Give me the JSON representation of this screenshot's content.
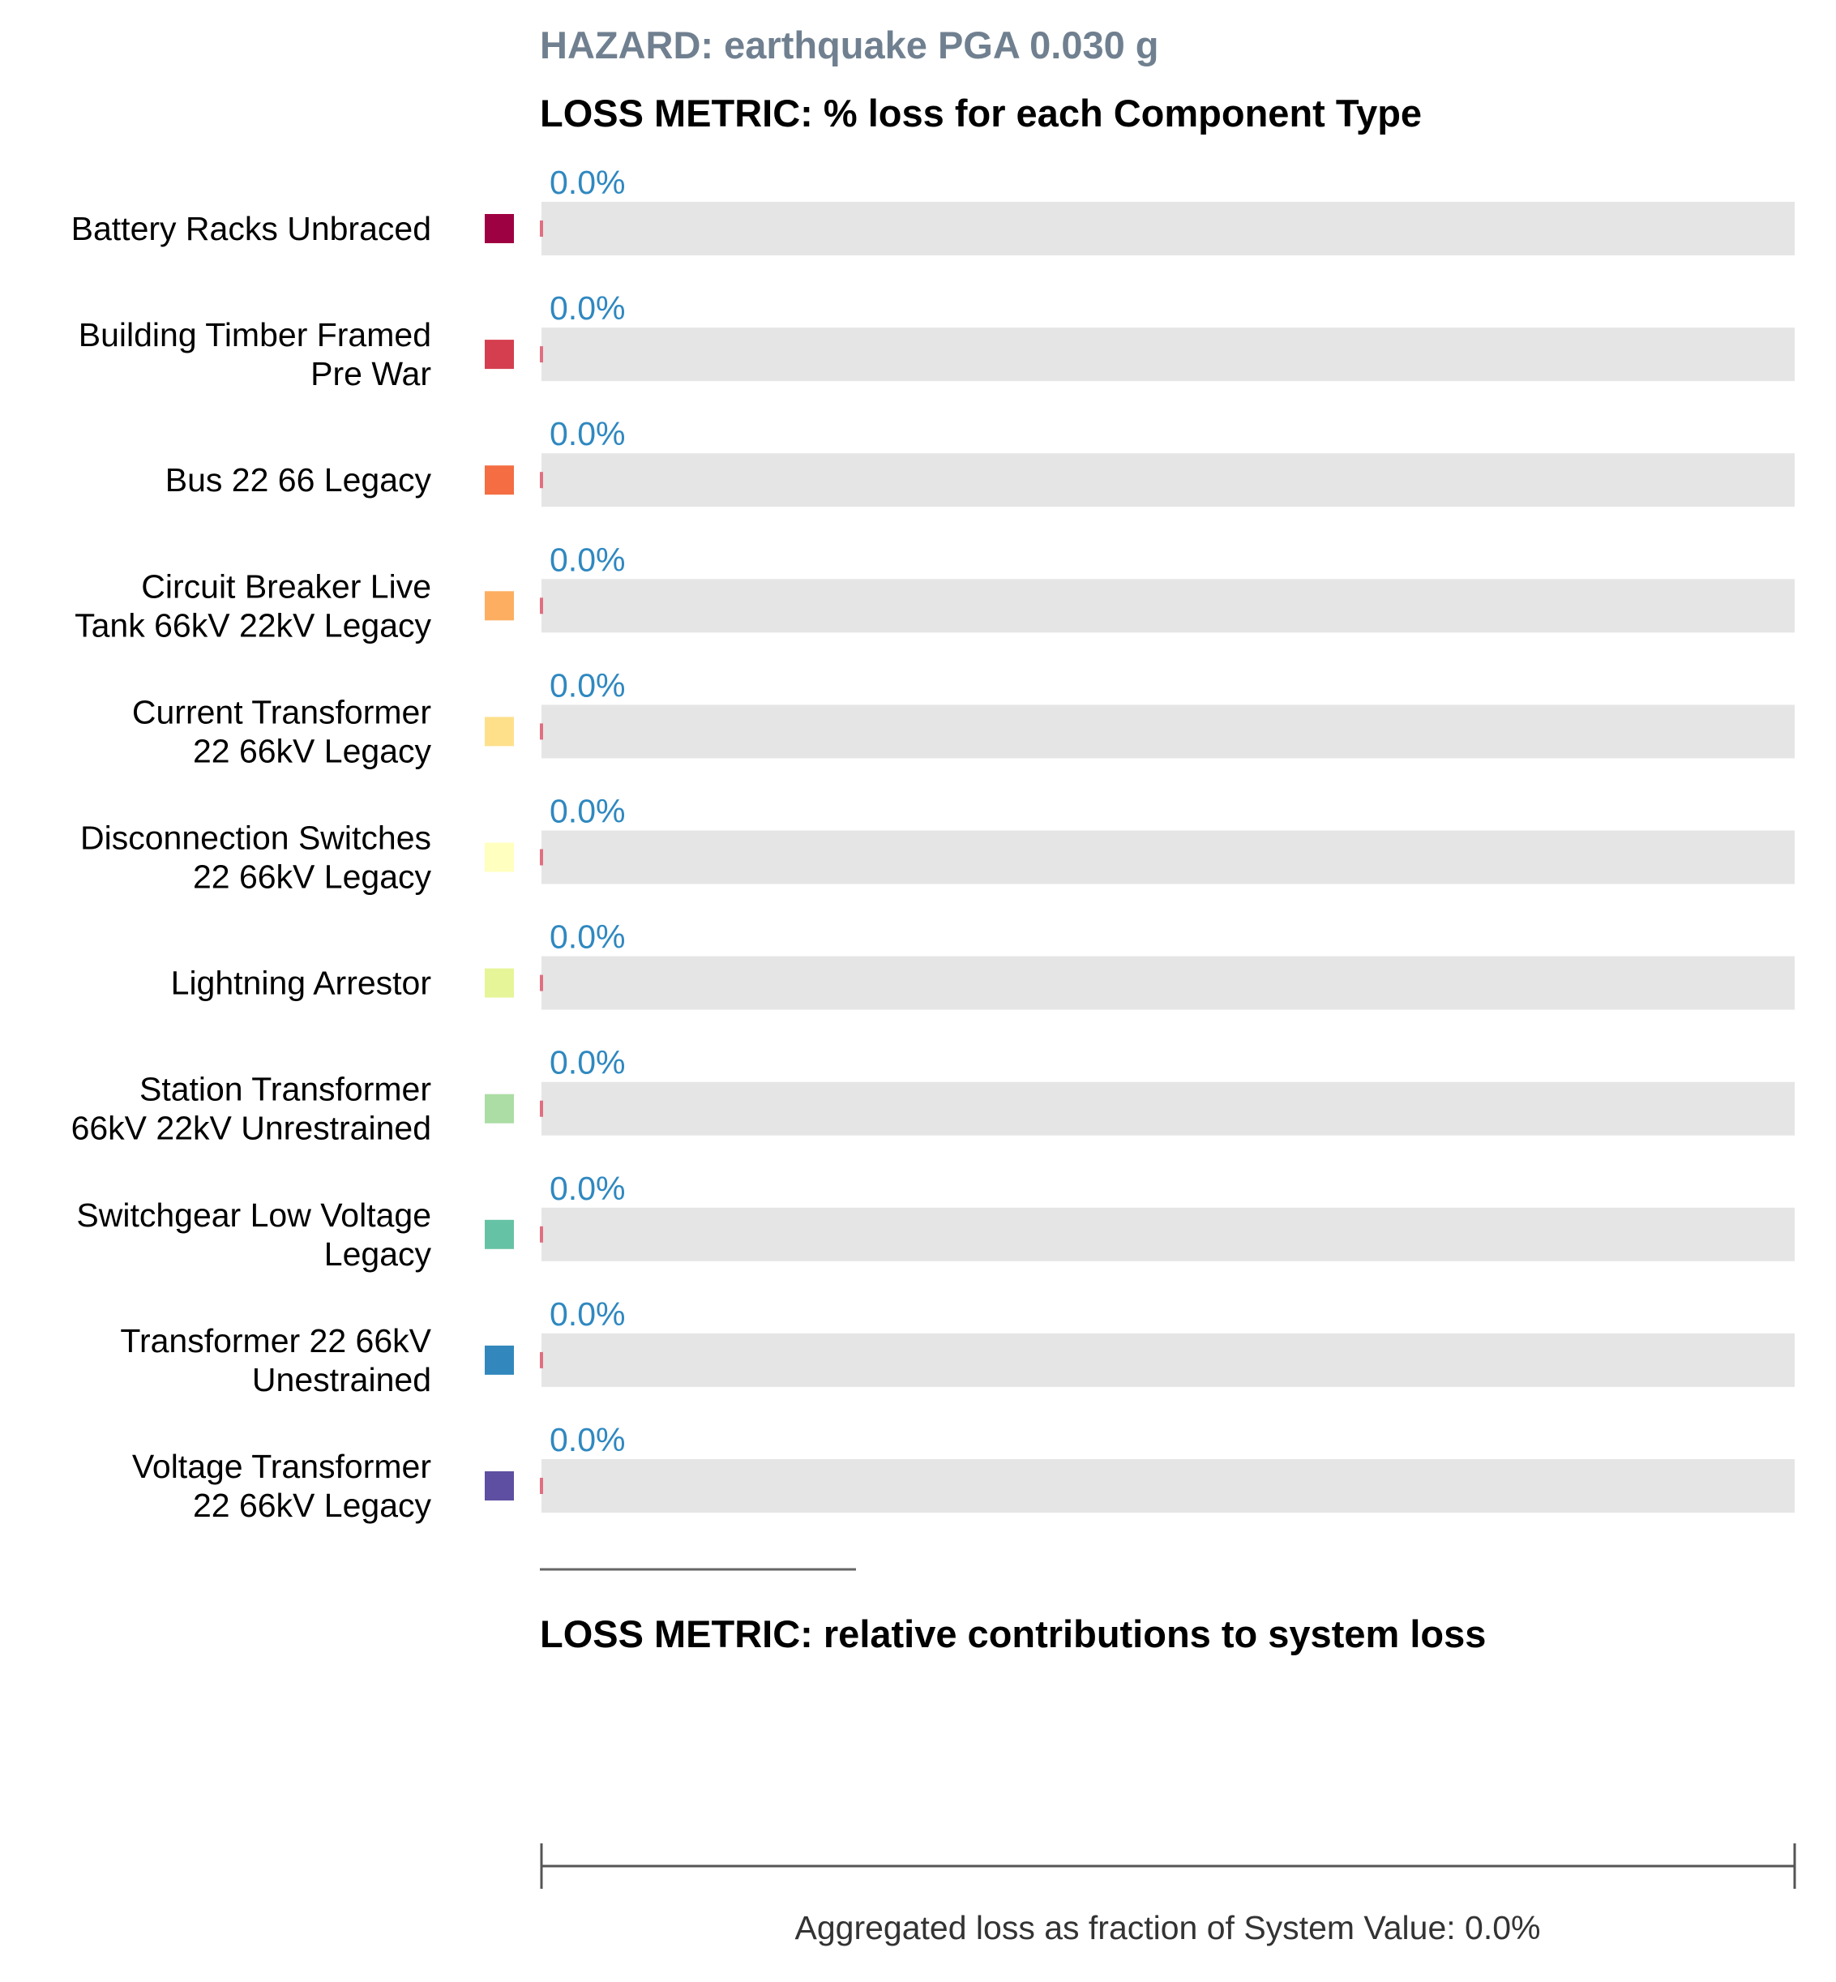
{
  "header": {
    "hazard_title": "HAZARD: earthquake PGA 0.030 g",
    "metric_title_1": "LOSS METRIC: % loss for each Component Type",
    "metric_title_2": "LOSS METRIC: relative contributions to system loss"
  },
  "footer": {
    "aggregate_label": "Aggregated loss as fraction of System Value: 0.0%"
  },
  "colors": {
    "track": "#e5e5e5",
    "value_label": "#2f88c0",
    "loss_bar": "#e07080",
    "divider": "#666666",
    "axis": "#555555"
  },
  "chart_data": {
    "type": "bar",
    "orientation": "horizontal",
    "title": "LOSS METRIC: % loss for each Component Type",
    "xlim": [
      0,
      100
    ],
    "unit": "%",
    "categories": [
      [
        "Battery Racks Unbraced"
      ],
      [
        "Building Timber Framed",
        "Pre War"
      ],
      [
        "Bus 22 66 Legacy"
      ],
      [
        "Circuit Breaker Live",
        "Tank 66kV 22kV Legacy"
      ],
      [
        "Current Transformer",
        "22 66kV Legacy"
      ],
      [
        "Disconnection Switches",
        "22 66kV Legacy"
      ],
      [
        "Lightning Arrestor"
      ],
      [
        "Station Transformer",
        "66kV 22kV Unrestrained"
      ],
      [
        "Switchgear Low Voltage",
        "Legacy"
      ],
      [
        "Transformer 22 66kV",
        "Unestrained"
      ],
      [
        "Voltage Transformer",
        "22 66kV Legacy"
      ]
    ],
    "values": [
      0.0,
      0.0,
      0.0,
      0.0,
      0.0,
      0.0,
      0.0,
      0.0,
      0.0,
      0.0,
      0.0
    ],
    "value_labels": [
      "0.0%",
      "0.0%",
      "0.0%",
      "0.0%",
      "0.0%",
      "0.0%",
      "0.0%",
      "0.0%",
      "0.0%",
      "0.0%",
      "0.0%"
    ],
    "swatch_colors": [
      "#9e0142",
      "#d53e4f",
      "#f46d43",
      "#fdae61",
      "#fee08b",
      "#ffffbf",
      "#e6f598",
      "#abdda4",
      "#66c2a5",
      "#3288bd",
      "#5e4fa2"
    ],
    "system_loss": {
      "title": "LOSS METRIC: relative contributions to system loss",
      "xlim": [
        0,
        100
      ],
      "aggregate_value": 0.0,
      "label": "Aggregated loss as fraction of System Value: 0.0%"
    }
  }
}
